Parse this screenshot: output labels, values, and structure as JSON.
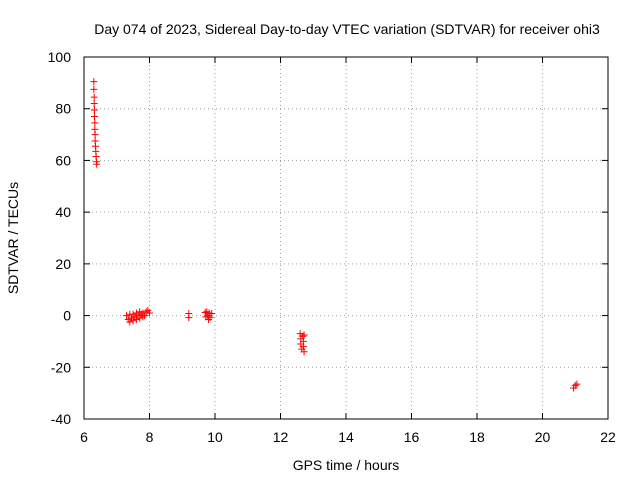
{
  "chart_data": {
    "type": "scatter",
    "title": "Day 074 of 2023, Sidereal Day-to-day VTEC variation (SDTVAR) for receiver ohi3",
    "xlabel": "GPS time / hours",
    "ylabel": "SDTVAR / TECUs",
    "xlim": [
      6,
      22
    ],
    "ylim": [
      -40,
      100
    ],
    "xticks": [
      6,
      8,
      10,
      12,
      14,
      16,
      18,
      20,
      22
    ],
    "yticks": [
      -40,
      -20,
      0,
      20,
      40,
      60,
      80,
      100
    ],
    "xtick_labels": [
      "6",
      "8",
      "10",
      "12",
      "14",
      "16",
      "18",
      "20",
      "22"
    ],
    "ytick_labels": [
      "-40",
      "-20",
      "0",
      "20",
      "40",
      "60",
      "80",
      "100"
    ],
    "grid": true,
    "marker": "+",
    "color": "#ff0000",
    "series": [
      {
        "name": "SDTVAR",
        "points": [
          [
            6.3,
            90.5
          ],
          [
            6.3,
            87.5
          ],
          [
            6.31,
            84.5
          ],
          [
            6.31,
            82.0
          ],
          [
            6.32,
            79.5
          ],
          [
            6.32,
            77.0
          ],
          [
            6.33,
            74.5
          ],
          [
            6.33,
            72.0
          ],
          [
            6.34,
            70.0
          ],
          [
            6.34,
            67.5
          ],
          [
            6.35,
            65.5
          ],
          [
            6.36,
            63.5
          ],
          [
            6.37,
            61.5
          ],
          [
            6.38,
            59.5
          ],
          [
            6.39,
            58.5
          ],
          [
            7.3,
            0.0
          ],
          [
            7.35,
            -1.5
          ],
          [
            7.4,
            -2.5
          ],
          [
            7.4,
            0.5
          ],
          [
            7.45,
            -1.0
          ],
          [
            7.5,
            -2.0
          ],
          [
            7.5,
            0.5
          ],
          [
            7.55,
            -0.5
          ],
          [
            7.6,
            -1.5
          ],
          [
            7.6,
            1.0
          ],
          [
            7.65,
            0.0
          ],
          [
            7.7,
            -1.0
          ],
          [
            7.7,
            1.5
          ],
          [
            7.75,
            0.5
          ],
          [
            7.8,
            -0.5
          ],
          [
            7.8,
            1.0
          ],
          [
            7.85,
            0.0
          ],
          [
            7.9,
            1.5
          ],
          [
            7.95,
            2.0
          ],
          [
            8.0,
            1.0
          ],
          [
            9.2,
            0.8
          ],
          [
            9.2,
            -0.8
          ],
          [
            9.7,
            1.2
          ],
          [
            9.72,
            -0.5
          ],
          [
            9.75,
            1.5
          ],
          [
            9.78,
            0.0
          ],
          [
            9.8,
            -1.5
          ],
          [
            9.82,
            1.0
          ],
          [
            9.85,
            -0.8
          ],
          [
            9.9,
            0.8
          ],
          [
            12.6,
            -7.0
          ],
          [
            12.62,
            -9.0
          ],
          [
            12.62,
            -11.0
          ],
          [
            12.65,
            -13.0
          ],
          [
            12.68,
            -8.0
          ],
          [
            12.7,
            -12.0
          ],
          [
            12.7,
            -10.0
          ],
          [
            12.72,
            -14.0
          ],
          [
            12.72,
            -7.5
          ],
          [
            20.95,
            -28.0
          ],
          [
            21.0,
            -27.0
          ],
          [
            21.05,
            -26.5
          ]
        ]
      }
    ]
  }
}
